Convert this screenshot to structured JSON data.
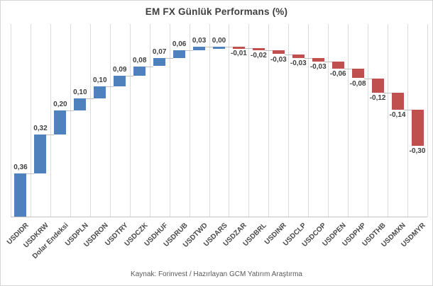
{
  "chart_data": {
    "type": "bar",
    "subtype": "waterfall",
    "title": "EM FX Günlük Performans (%)",
    "categories": [
      "USDIDR",
      "USDKRW",
      "Dolar Endeksi",
      "USDPLN",
      "USDRON",
      "USDTRY",
      "USDCZK",
      "USDHUF",
      "USDRUB",
      "USDTWD",
      "USDARS",
      "USDZAR",
      "USDBRL",
      "USDINR",
      "USDCLP",
      "USDCOP",
      "USDPEN",
      "USDPHP",
      "USDTHB",
      "USDMXN",
      "USDMYR"
    ],
    "values": [
      0.36,
      0.32,
      0.2,
      0.1,
      0.1,
      0.09,
      0.08,
      0.07,
      0.06,
      0.03,
      0.0,
      -0.01,
      -0.02,
      -0.03,
      -0.03,
      -0.03,
      -0.06,
      -0.08,
      -0.12,
      -0.14,
      -0.3
    ],
    "value_labels": [
      "0,36",
      "0,32",
      "0,20",
      "0,10",
      "0,10",
      "0,09",
      "0,08",
      "0,07",
      "0,06",
      "0,03",
      "0,00",
      "-0,01",
      "-0,02",
      "-0,03",
      "-0,03",
      "-0,03",
      "-0,06",
      "-0,08",
      "-0,12",
      "-0,14",
      "-0,30"
    ],
    "xlabel": "",
    "ylabel": "",
    "ylim": [
      0,
      1.6
    ],
    "grid": "vertical-only",
    "legend_position": "none",
    "colors": {
      "positive_bar": "#4f81bd",
      "negative_bar": "#c0504d",
      "gridline": "#dcdcdc",
      "connector": "#bfbfbf",
      "axis_line": "#c3c3c3",
      "label_text": "#3f3f3f"
    }
  },
  "footer": {
    "source_text": "Kaynak: Forinvest / Hazırlayan GCM Yatırım Araştırma"
  }
}
